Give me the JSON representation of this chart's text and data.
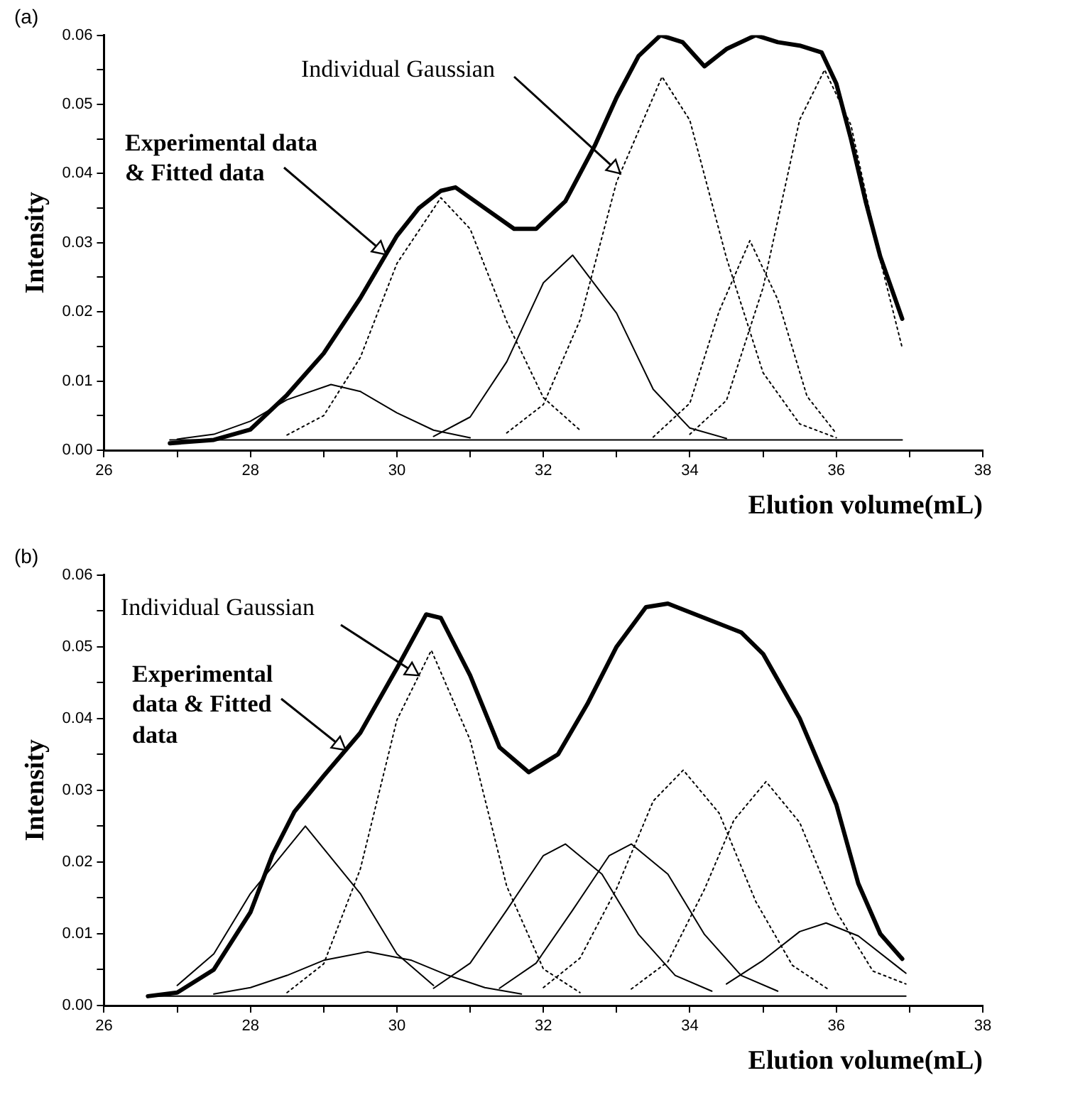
{
  "chart_data": [
    {
      "type": "line",
      "title": "(a)",
      "xlabel": "Elution volume(mL)",
      "ylabel": "Intensity",
      "xlim": [
        26,
        38
      ],
      "ylim": [
        0,
        0.06
      ],
      "xticks": [
        26,
        {
          "value": 27,
          "label": null
        },
        28,
        {
          "value": 29,
          "label": null
        },
        30,
        {
          "value": 31,
          "label": null
        },
        32,
        {
          "value": 33,
          "label": null
        },
        34,
        {
          "value": 35,
          "label": null
        },
        36,
        {
          "value": 37,
          "label": null
        },
        38
      ],
      "yticks": [
        {
          "value": 0,
          "label": "0.00"
        },
        {
          "value": 0.005,
          "label": null
        },
        {
          "value": 0.01,
          "label": "0.01"
        },
        {
          "value": 0.015,
          "label": null
        },
        {
          "value": 0.02,
          "label": "0.02"
        },
        {
          "value": 0.025,
          "label": null
        },
        {
          "value": 0.03,
          "label": "0.03"
        },
        {
          "value": 0.035,
          "label": null
        },
        {
          "value": 0.04,
          "label": "0.04"
        },
        {
          "value": 0.045,
          "label": null
        },
        {
          "value": 0.05,
          "label": "0.05"
        },
        {
          "value": 0.055,
          "label": null
        },
        {
          "value": 0.06,
          "label": "0.06"
        }
      ],
      "grid": false,
      "marker": "none",
      "line_style": "solid",
      "series": [
        {
          "color": "#000000",
          "x": [
            26.9,
            27.5,
            28,
            28.5,
            29,
            29.5,
            30,
            30.3,
            30.6,
            30.8,
            31.2,
            31.6,
            31.9,
            32.3,
            32.7,
            33,
            33.3,
            33.6,
            33.9,
            34.2,
            34.5,
            34.9,
            35.2,
            35.5,
            35.8,
            36,
            36.2,
            36.4,
            36.6,
            36.9
          ],
          "values": [
            0.001,
            0.0015,
            0.003,
            0.008,
            0.014,
            0.022,
            0.031,
            0.035,
            0.0375,
            0.038,
            0.035,
            0.032,
            0.032,
            0.036,
            0.044,
            0.051,
            0.057,
            0.06,
            0.059,
            0.0555,
            0.058,
            0.06,
            0.059,
            0.0585,
            0.0575,
            0.053,
            0.045,
            0.036,
            0.028,
            0.019
          ]
        },
        {
          "color": "#000000",
          "line_style": "solid",
          "x": [
            27,
            27.5,
            28,
            28.5,
            29.1,
            29.5,
            30,
            30.5,
            31
          ],
          "values": [
            0.0016,
            0.0023,
            0.0042,
            0.0073,
            0.0095,
            0.0085,
            0.0054,
            0.0029,
            0.0018
          ]
        },
        {
          "color": "#000000",
          "line_style": "dotted",
          "x": [
            28.5,
            29,
            29.5,
            30,
            30.6,
            31,
            31.5,
            32,
            32.5
          ],
          "values": [
            0.0022,
            0.005,
            0.0134,
            0.027,
            0.0365,
            0.032,
            0.0186,
            0.0076,
            0.0029
          ]
        },
        {
          "color": "#000000",
          "line_style": "solid",
          "x": [
            30.5,
            31,
            31.5,
            32,
            32.4,
            33,
            33.5,
            34,
            34.5
          ],
          "values": [
            0.002,
            0.0048,
            0.0128,
            0.0242,
            0.0282,
            0.0198,
            0.0088,
            0.0032,
            0.0017
          ]
        },
        {
          "color": "#000000",
          "line_style": "dotted",
          "x": [
            31.5,
            32,
            32.5,
            33,
            33.62,
            34,
            34.5,
            35,
            35.5,
            36
          ],
          "values": [
            0.0025,
            0.0066,
            0.0188,
            0.0388,
            0.054,
            0.0477,
            0.0278,
            0.0112,
            0.0038,
            0.0018
          ]
        },
        {
          "color": "#000000",
          "line_style": "dotted",
          "x": [
            33.5,
            34,
            34.4,
            34.82,
            35.2,
            35.6,
            36
          ],
          "values": [
            0.0019,
            0.0068,
            0.0201,
            0.0303,
            0.0218,
            0.0078,
            0.0024
          ]
        },
        {
          "color": "#000000",
          "line_style": "dotted",
          "x": [
            34,
            34.5,
            35,
            35.5,
            35.84,
            36.2,
            36.6,
            36.9
          ],
          "values": [
            0.0023,
            0.0072,
            0.0235,
            0.0478,
            0.055,
            0.047,
            0.0275,
            0.0148
          ]
        },
        {
          "color": "#000000",
          "line_style": "solid",
          "x": [
            26.9,
            36.9
          ],
          "values": [
            0.0015,
            0.0015
          ]
        }
      ],
      "annotations": [
        {
          "text": "Individual Gaussian",
          "x": 33.05,
          "y": 0.04
        },
        {
          "text": "Experimental data & Fitted data",
          "x": 29.85,
          "y": 0.0283
        }
      ]
    },
    {
      "type": "line",
      "title": "(b)",
      "xlabel": "Elution volume(mL)",
      "ylabel": "Intensity",
      "xlim": [
        26,
        38
      ],
      "ylim": [
        0,
        0.06
      ],
      "xticks": [
        26,
        {
          "value": 27,
          "label": null
        },
        28,
        {
          "value": 29,
          "label": null
        },
        30,
        {
          "value": 31,
          "label": null
        },
        32,
        {
          "value": 33,
          "label": null
        },
        34,
        {
          "value": 35,
          "label": null
        },
        36,
        {
          "value": 37,
          "label": null
        },
        38
      ],
      "yticks": [
        {
          "value": 0,
          "label": "0.00"
        },
        {
          "value": 0.005,
          "label": null
        },
        {
          "value": 0.01,
          "label": "0.01"
        },
        {
          "value": 0.015,
          "label": null
        },
        {
          "value": 0.02,
          "label": "0.02"
        },
        {
          "value": 0.025,
          "label": null
        },
        {
          "value": 0.03,
          "label": "0.03"
        },
        {
          "value": 0.035,
          "label": null
        },
        {
          "value": 0.04,
          "label": "0.04"
        },
        {
          "value": 0.045,
          "label": null
        },
        {
          "value": 0.05,
          "label": "0.05"
        },
        {
          "value": 0.055,
          "label": null
        },
        {
          "value": 0.06,
          "label": "0.06"
        }
      ],
      "grid": false,
      "marker": "none",
      "line_style": "solid",
      "series": [
        {
          "color": "#000000",
          "x": [
            26.6,
            27,
            27.5,
            28,
            28.3,
            28.6,
            29,
            29.5,
            30,
            30.4,
            30.6,
            31,
            31.4,
            31.8,
            32.2,
            32.6,
            33,
            33.4,
            33.7,
            34.2,
            34.7,
            35,
            35.5,
            36,
            36.3,
            36.6,
            36.9
          ],
          "values": [
            0.0013,
            0.0018,
            0.005,
            0.013,
            0.021,
            0.027,
            0.032,
            0.038,
            0.047,
            0.0545,
            0.054,
            0.046,
            0.036,
            0.0325,
            0.035,
            0.042,
            0.05,
            0.0555,
            0.056,
            0.054,
            0.052,
            0.049,
            0.04,
            0.028,
            0.017,
            0.01,
            0.0065
          ]
        },
        {
          "color": "#000000",
          "line_style": "solid",
          "x": [
            27,
            27.5,
            28,
            28.75,
            29.5,
            30,
            30.5
          ],
          "values": [
            0.0028,
            0.0072,
            0.0156,
            0.025,
            0.0156,
            0.0072,
            0.0028
          ]
        },
        {
          "color": "#000000",
          "line_style": "dotted",
          "x": [
            28.5,
            29,
            29.5,
            30,
            30.47,
            31,
            31.5,
            32,
            32.5
          ],
          "values": [
            0.0018,
            0.0058,
            0.019,
            0.0398,
            0.0495,
            0.037,
            0.0166,
            0.0051,
            0.0018
          ]
        },
        {
          "color": "#000000",
          "line_style": "solid",
          "x": [
            27.5,
            28,
            28.5,
            29,
            29.6,
            30.2,
            30.7,
            31.2,
            31.7
          ],
          "values": [
            0.0016,
            0.0025,
            0.0042,
            0.0063,
            0.0075,
            0.0063,
            0.0042,
            0.0025,
            0.0016
          ]
        },
        {
          "color": "#000000",
          "line_style": "solid",
          "x": [
            30.5,
            31,
            31.5,
            32,
            32.3,
            32.8,
            33.3,
            33.8,
            34.3
          ],
          "values": [
            0.0024,
            0.0059,
            0.0133,
            0.0209,
            0.0225,
            0.0183,
            0.0099,
            0.0042,
            0.002
          ]
        },
        {
          "color": "#000000",
          "line_style": "solid",
          "x": [
            31.4,
            31.9,
            32.4,
            32.9,
            33.2,
            33.7,
            34.2,
            34.7,
            35.2
          ],
          "values": [
            0.0024,
            0.0059,
            0.0133,
            0.0209,
            0.0225,
            0.0183,
            0.0099,
            0.0042,
            0.002
          ]
        },
        {
          "color": "#000000",
          "line_style": "dotted",
          "x": [
            32,
            32.5,
            33,
            33.5,
            33.91,
            34.4,
            34.9,
            35.4,
            35.9
          ],
          "values": [
            0.0025,
            0.0066,
            0.0163,
            0.0285,
            0.0328,
            0.0268,
            0.0145,
            0.0056,
            0.0022
          ]
        },
        {
          "color": "#000000",
          "line_style": "dotted",
          "x": [
            33.2,
            33.7,
            34.2,
            34.6,
            35.04,
            35.5,
            36,
            36.5,
            36.95
          ],
          "values": [
            0.0023,
            0.0061,
            0.0162,
            0.0258,
            0.0312,
            0.0255,
            0.0131,
            0.0048,
            0.003
          ]
        },
        {
          "color": "#000000",
          "line_style": "solid",
          "x": [
            34.5,
            35,
            35.5,
            35.86,
            36.3,
            36.95
          ],
          "values": [
            0.003,
            0.0063,
            0.0103,
            0.0115,
            0.0097,
            0.0045
          ]
        },
        {
          "color": "#000000",
          "line_style": "solid",
          "x": [
            26.6,
            36.95
          ],
          "values": [
            0.0013,
            0.0013
          ]
        }
      ],
      "annotations": [
        {
          "text": "Individual Gaussian",
          "x": 30.3,
          "y": 0.046
        },
        {
          "text": "Experimental data & Fitted data",
          "x": 29.3,
          "y": 0.0356
        }
      ]
    }
  ]
}
